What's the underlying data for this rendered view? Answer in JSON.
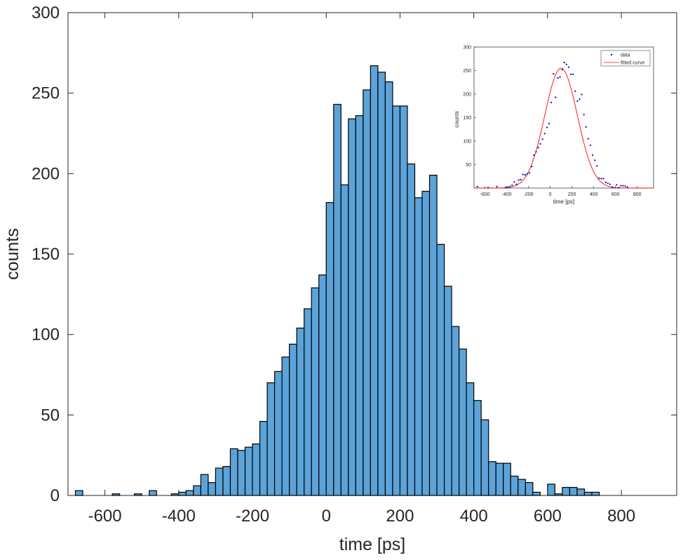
{
  "chart_data": [
    {
      "type": "bar",
      "subtype": "histogram",
      "xlabel": "time [ps]",
      "ylabel": "counts",
      "xlim": [
        -700,
        950
      ],
      "ylim": [
        0,
        300
      ],
      "xticks": [
        -600,
        -400,
        -200,
        0,
        200,
        400,
        600,
        800
      ],
      "yticks": [
        0,
        50,
        100,
        150,
        200,
        250,
        300
      ],
      "bin_width": 20,
      "bar_color": "#5ba3d9",
      "edge_color": "#000000",
      "grid": false,
      "bin_start": [
        -680,
        -660,
        -640,
        -620,
        -600,
        -580,
        -560,
        -540,
        -520,
        -500,
        -480,
        -460,
        -440,
        -420,
        -400,
        -380,
        -360,
        -340,
        -320,
        -300,
        -280,
        -260,
        -240,
        -220,
        -200,
        -180,
        -160,
        -140,
        -120,
        -100,
        -80,
        -60,
        -40,
        -20,
        0,
        20,
        40,
        60,
        80,
        100,
        120,
        140,
        160,
        180,
        200,
        220,
        240,
        260,
        280,
        300,
        320,
        340,
        360,
        380,
        400,
        420,
        440,
        460,
        480,
        500,
        520,
        540,
        560,
        580,
        600,
        620,
        640,
        660,
        680,
        700,
        720
      ],
      "counts": [
        3,
        0,
        0,
        0,
        0,
        1,
        0,
        0,
        1,
        0,
        3,
        0,
        0,
        1,
        2,
        3,
        6,
        13,
        8,
        17,
        18,
        29,
        28,
        30,
        32,
        46,
        70,
        77,
        86,
        94,
        104,
        116,
        129,
        137,
        182,
        243,
        193,
        234,
        236,
        252,
        267,
        263,
        257,
        242,
        242,
        206,
        185,
        189,
        199,
        156,
        130,
        105,
        91,
        70,
        59,
        47,
        21,
        20,
        20,
        12,
        10,
        8,
        2,
        0,
        7,
        1,
        5,
        5,
        4,
        2,
        2
      ]
    },
    {
      "type": "scatter",
      "role": "inset",
      "xlabel": "time [ps]",
      "ylabel": "counts",
      "xlim": [
        -700,
        950
      ],
      "ylim": [
        0,
        300
      ],
      "xticks": [
        -600,
        -400,
        -200,
        0,
        200,
        400,
        600,
        800
      ],
      "yticks": [
        50,
        100,
        150,
        200,
        250,
        300
      ],
      "legend": "top-right",
      "series": [
        {
          "name": "data",
          "marker": "dot",
          "color": "#1f1fbf",
          "x": [
            -670,
            -570,
            -490,
            -410,
            -390,
            -370,
            -350,
            -330,
            -310,
            -290,
            -270,
            -250,
            -230,
            -210,
            -190,
            -170,
            -150,
            -130,
            -110,
            -90,
            -70,
            -50,
            -30,
            -10,
            10,
            30,
            50,
            70,
            90,
            110,
            130,
            150,
            170,
            190,
            210,
            230,
            250,
            270,
            290,
            310,
            330,
            350,
            370,
            390,
            410,
            430,
            450,
            470,
            490,
            510,
            530,
            550,
            570,
            610,
            630,
            650,
            670,
            690,
            710
          ],
          "y": [
            3,
            1,
            3,
            1,
            2,
            3,
            6,
            13,
            8,
            17,
            18,
            29,
            28,
            30,
            32,
            46,
            70,
            77,
            86,
            94,
            104,
            116,
            129,
            137,
            182,
            243,
            193,
            234,
            236,
            252,
            267,
            263,
            257,
            242,
            242,
            206,
            185,
            189,
            199,
            156,
            130,
            105,
            91,
            70,
            59,
            47,
            21,
            20,
            20,
            12,
            10,
            8,
            2,
            7,
            1,
            5,
            5,
            4,
            2
          ]
        },
        {
          "name": "fitted curve",
          "type": "line",
          "color": "#ff0000",
          "model": "gaussian",
          "amplitude": 255,
          "mean": 100,
          "sigma": 150
        }
      ]
    }
  ]
}
